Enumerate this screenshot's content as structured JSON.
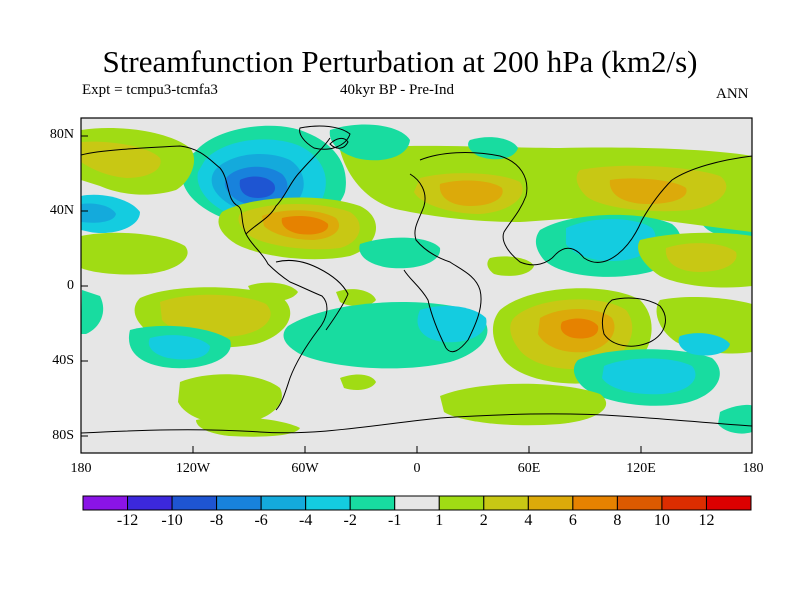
{
  "title": "Streamfunction Perturbation at 200 hPa (km2/s)",
  "experiment": "Expt = tcmpu3-tcmfa3",
  "period": "40kyr BP - Pre-Ind",
  "season": "ANN",
  "lat_labels": [
    "80N",
    "40N",
    "0",
    "40S",
    "80S"
  ],
  "lon_labels": [
    "180",
    "120W",
    "60W",
    "0",
    "60E",
    "120E",
    "180"
  ],
  "colorbar": {
    "labels": [
      "-12",
      "-10",
      "-8",
      "-6",
      "-4",
      "-2",
      "-1",
      "1",
      "2",
      "4",
      "6",
      "8",
      "10",
      "12"
    ],
    "colors": [
      "#8a14e6",
      "#3c28dc",
      "#1e55d2",
      "#1882dc",
      "#14aadc",
      "#14cce0",
      "#18dca0",
      "#e6e6e6",
      "#a0dc14",
      "#c8c814",
      "#dcaa0a",
      "#e68200",
      "#dc5a00",
      "#dc2d00",
      "#dc0000"
    ]
  },
  "map_colors": {
    "background": "#e6e6e6",
    "neg1": "#18dca0",
    "neg2": "#14cce0",
    "neg3": "#14aadc",
    "neg4": "#1882dc",
    "neg5": "#1e55d2",
    "pos1": "#a0dc14",
    "pos2": "#c8c814",
    "pos3": "#dcaa0a",
    "pos4": "#e68200"
  }
}
